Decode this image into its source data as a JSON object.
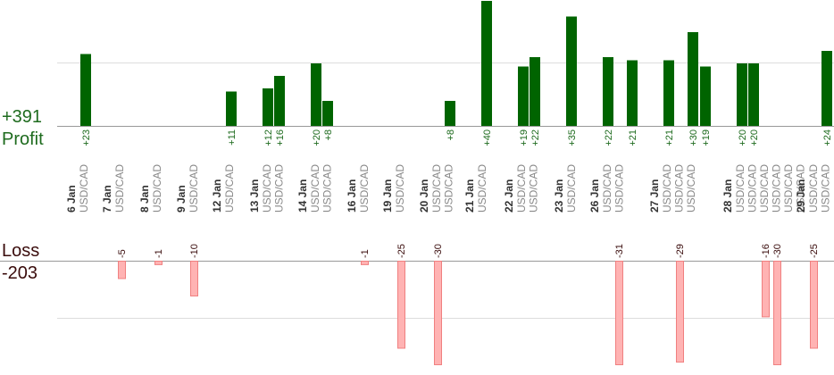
{
  "summary": {
    "profit_total": "+391",
    "profit_label": "Profit",
    "loss_label": "Loss",
    "loss_total": "-203"
  },
  "colors": {
    "profit_bar": "#006400",
    "profit_text": "#1e6b1e",
    "loss_bar": "#ffb3b3",
    "loss_bar_border": "#f08080",
    "loss_text": "#3a0c0c",
    "date_text": "#333333",
    "pair_text": "#888888",
    "grid": "#dddddd",
    "axis": "#999999"
  },
  "chart_data": {
    "type": "bar",
    "pair": "USD/CAD",
    "days": [
      {
        "date": "6 Jan",
        "profits": [
          23
        ],
        "losses": []
      },
      {
        "date": "7 Jan",
        "profits": [],
        "losses": [
          -5
        ]
      },
      {
        "date": "8 Jan",
        "profits": [],
        "losses": [
          -1
        ]
      },
      {
        "date": "9 Jan",
        "profits": [],
        "losses": [
          -10
        ]
      },
      {
        "date": "12 Jan",
        "profits": [
          11
        ],
        "losses": []
      },
      {
        "date": "13 Jan",
        "profits": [
          12,
          16
        ],
        "losses": []
      },
      {
        "date": "14 Jan",
        "profits": [
          20,
          8
        ],
        "losses": []
      },
      {
        "date": "16 Jan",
        "profits": [],
        "losses": [
          -1
        ]
      },
      {
        "date": "19 Jan",
        "profits": [],
        "losses": [
          -25
        ]
      },
      {
        "date": "20 Jan",
        "profits": [
          8
        ],
        "losses": [
          -30
        ]
      },
      {
        "date": "21 Jan",
        "profits": [
          40
        ],
        "losses": []
      },
      {
        "date": "22 Jan",
        "profits": [
          19,
          22
        ],
        "losses": []
      },
      {
        "date": "23 Jan",
        "profits": [
          35
        ],
        "losses": []
      },
      {
        "date": "26 Jan",
        "profits": [
          22
        ],
        "losses": [
          -31
        ]
      },
      {
        "date": "27 Jan",
        "profits": [
          21,
          21
        ],
        "losses": [
          -29
        ]
      },
      {
        "date": "28 Jan",
        "profits": [
          30,
          19,
          20,
          20
        ],
        "losses": [
          -16,
          -30
        ]
      },
      {
        "date": "29 Jan",
        "profits": [
          24
        ],
        "losses": [
          -25
        ]
      }
    ],
    "profit_bars": [
      {
        "label": "+23",
        "value": 23
      },
      {
        "label": "+11",
        "value": 11
      },
      {
        "label": "+12",
        "value": 12
      },
      {
        "label": "+16",
        "value": 16
      },
      {
        "label": "+20",
        "value": 20
      },
      {
        "label": "+8",
        "value": 8
      },
      {
        "label": "+8",
        "value": 8
      },
      {
        "label": "+40",
        "value": 40
      },
      {
        "label": "+19",
        "value": 19
      },
      {
        "label": "+22",
        "value": 22
      },
      {
        "label": "+35",
        "value": 35
      },
      {
        "label": "+22",
        "value": 22
      },
      {
        "label": "+21",
        "value": 21
      },
      {
        "label": "+21",
        "value": 21
      },
      {
        "label": "+30",
        "value": 30
      },
      {
        "label": "+19",
        "value": 19
      },
      {
        "label": "+20",
        "value": 20
      },
      {
        "label": "+20",
        "value": 20
      },
      {
        "label": "+24",
        "value": 24
      }
    ],
    "loss_bars": [
      {
        "label": "-5",
        "value": -5
      },
      {
        "label": "-1",
        "value": -1
      },
      {
        "label": "-10",
        "value": -10
      },
      {
        "label": "-1",
        "value": -1
      },
      {
        "label": "-25",
        "value": -25
      },
      {
        "label": "-30",
        "value": -30
      },
      {
        "label": "-31",
        "value": -31
      },
      {
        "label": "-29",
        "value": -29
      },
      {
        "label": "-16",
        "value": -16
      },
      {
        "label": "-30",
        "value": -30
      },
      {
        "label": "-25",
        "value": -25
      }
    ],
    "grid": true
  }
}
